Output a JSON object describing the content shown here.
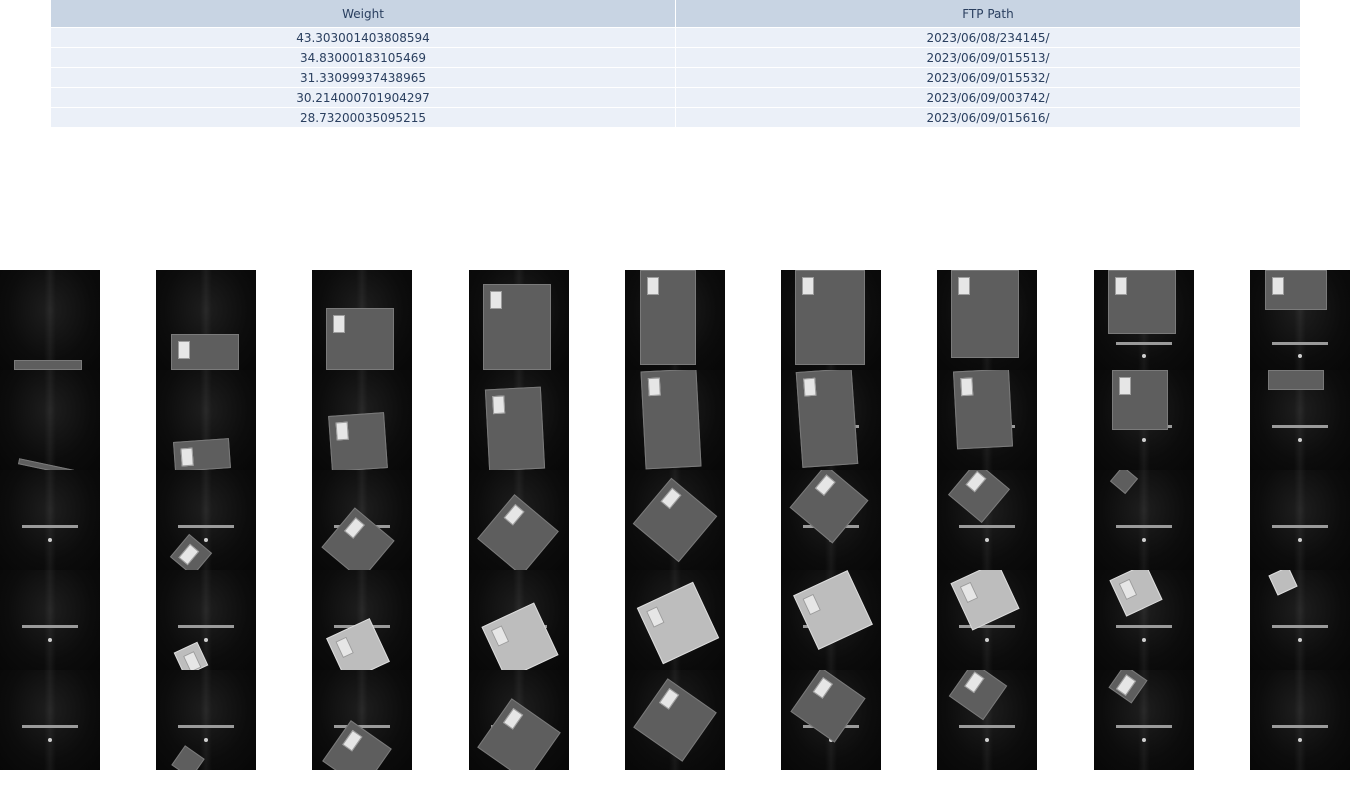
{
  "table": {
    "headers": [
      "Weight",
      "FTP Path"
    ],
    "rows": [
      {
        "weight": "43.303001403808594",
        "ftp_path": "2023/06/08/234145/"
      },
      {
        "weight": "34.83000183105469",
        "ftp_path": "2023/06/09/015513/"
      },
      {
        "weight": "31.33099937438965",
        "ftp_path": "2023/06/09/015532/"
      },
      {
        "weight": "30.214000701904297",
        "ftp_path": "2023/06/09/003742/"
      },
      {
        "weight": "28.73200035095215",
        "ftp_path": "2023/06/09/015616/"
      }
    ]
  },
  "gallery": {
    "columns": 9,
    "rows": 5,
    "image_kind": "grayscale conveyor camera frames of packages"
  }
}
